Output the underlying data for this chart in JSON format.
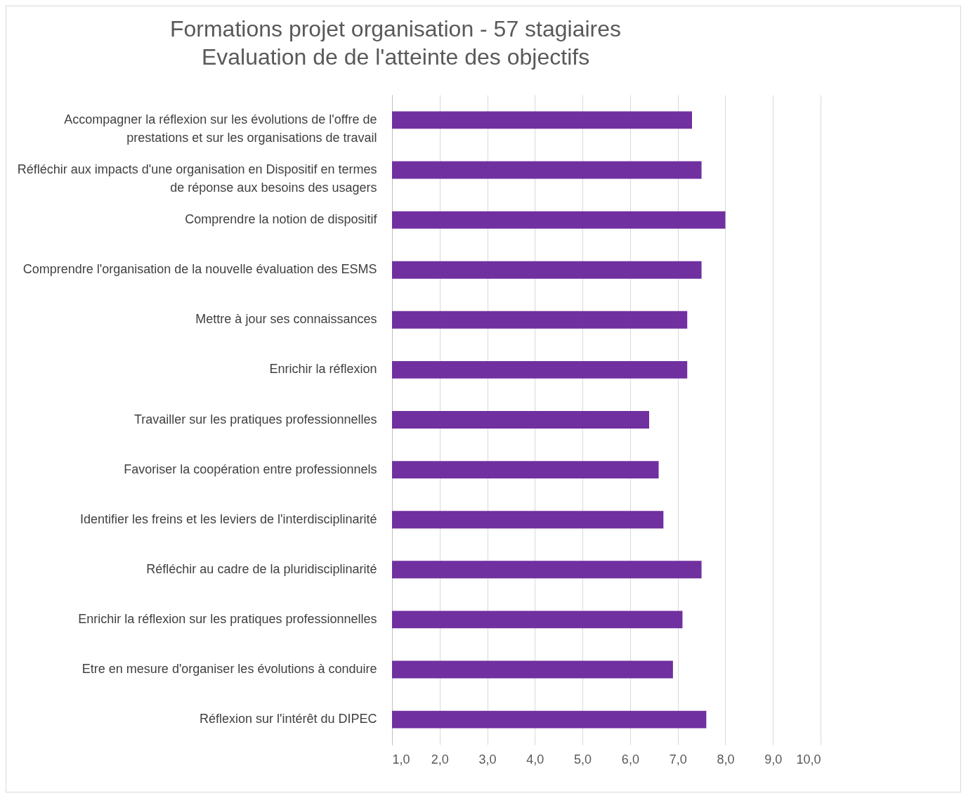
{
  "chart_data": {
    "type": "bar",
    "orientation": "horizontal",
    "title": "Formations projet organisation - 57 stagiaires",
    "subtitle": "Evaluation de de l'atteinte des objectifs",
    "categories": [
      "Accompagner la réflexion sur les évolutions de l'offre de prestations et sur les organisations de travail",
      "Réfléchir aux impacts d'une organisation en Dispositif en termes de réponse aux besoins des usagers",
      "Comprendre la notion de dispositif",
      "Comprendre l'organisation de la nouvelle évaluation des ESMS",
      "Mettre à jour ses connaissances",
      "Enrichir la réflexion",
      "Travailler sur les pratiques professionnelles",
      "Favoriser la coopération entre professionnels",
      "Identifier les freins et les leviers de l'interdisciplinarité",
      "Réfléchir au cadre de la pluridisciplinarité",
      "Enrichir la réflexion sur les pratiques professionnelles",
      "Etre en mesure d'organiser les évolutions à conduire",
      "Réflexion sur l'intérêt du DIPEC"
    ],
    "values": [
      7.3,
      7.5,
      8.0,
      7.5,
      7.2,
      7.2,
      6.4,
      6.6,
      6.7,
      7.5,
      7.1,
      6.9,
      7.6
    ],
    "color": "#7030a0",
    "xlim": [
      1,
      10
    ],
    "xticks": [
      {
        "value": 1,
        "label": "1,0"
      },
      {
        "value": 2,
        "label": "2,0"
      },
      {
        "value": 3,
        "label": "3,0"
      },
      {
        "value": 4,
        "label": "4,0"
      },
      {
        "value": 5,
        "label": "5,0"
      },
      {
        "value": 6,
        "label": "6,0"
      },
      {
        "value": 7,
        "label": "7,0"
      },
      {
        "value": 8,
        "label": "8,0"
      },
      {
        "value": 9,
        "label": "9,0"
      },
      {
        "value": 10,
        "label": "10,0"
      }
    ],
    "grid": "x"
  }
}
